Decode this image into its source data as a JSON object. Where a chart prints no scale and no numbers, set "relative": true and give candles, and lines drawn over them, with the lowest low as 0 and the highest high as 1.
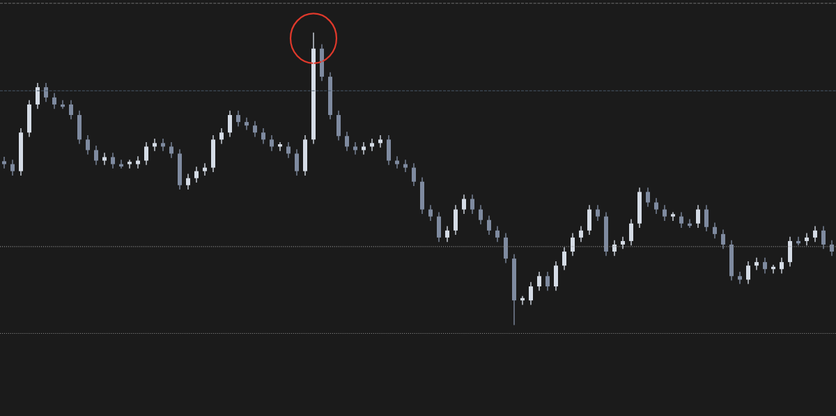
{
  "chart_data": {
    "type": "candlestick",
    "relative": true,
    "grid": false,
    "colors": [
      "#7f8ba0",
      "#7f8ba0",
      "#d5dce6",
      "#d5dce6",
      "#d5dce6",
      "#7f8ba0",
      "#7f8ba0",
      "#7f8ba0",
      "#7f8ba0",
      "#7f8ba0",
      "#7f8ba0",
      "#7f8ba0",
      "#d5dce6",
      "#7f8ba0",
      "#7f8ba0",
      "#d5dce6",
      "#d5dce6",
      "#d5dce6",
      "#d5dce6",
      "#7f8ba0",
      "#7f8ba0",
      "#7f8ba0",
      "#d5dce6",
      "#d5dce6",
      "#d5dce6",
      "#d5dce6",
      "#d5dce6",
      "#d5dce6",
      "#7f8ba0",
      "#7f8ba0",
      "#7f8ba0",
      "#7f8ba0",
      "#7f8ba0",
      "#d5dce6",
      "#7f8ba0",
      "#7f8ba0",
      "#d5dce6",
      "#d5dce6",
      "#7f8ba0",
      "#7f8ba0",
      "#7f8ba0",
      "#7f8ba0",
      "#7f8ba0",
      "#d5dce6",
      "#d5dce6",
      "#d5dce6",
      "#7f8ba0",
      "#7f8ba0",
      "#7f8ba0",
      "#7f8ba0",
      "#7f8ba0",
      "#7f8ba0",
      "#7f8ba0",
      "#d5dce6",
      "#d5dce6",
      "#d5dce6",
      "#7f8ba0",
      "#7f8ba0",
      "#7f8ba0",
      "#7f8ba0",
      "#7f8ba0",
      "#7f8ba0",
      "#d5dce6",
      "#d5dce6",
      "#d5dce6",
      "#7f8ba0",
      "#d5dce6",
      "#d5dce6",
      "#d5dce6",
      "#d5dce6",
      "#d5dce6",
      "#7f8ba0",
      "#7f8ba0",
      "#d5dce6",
      "#d5dce6",
      "#d5dce6",
      "#d5dce6",
      "#7f8ba0",
      "#7f8ba0",
      "#7f8ba0",
      "#d5dce6",
      "#7f8ba0",
      "#7f8ba0",
      "#d5dce6",
      "#7f8ba0",
      "#7f8ba0",
      "#7f8ba0",
      "#7f8ba0",
      "#7f8ba0",
      "#d5dce6",
      "#d5dce6",
      "#7f8ba0",
      "#d5dce6",
      "#d5dce6",
      "#d5dce6",
      "#7f8ba0",
      "#d5dce6",
      "#d5dce6",
      "#7f8ba0",
      "#7f8ba0"
    ],
    "categories": [
      null,
      null,
      null,
      null,
      null,
      null,
      null,
      null,
      null,
      null,
      null,
      null,
      null,
      null,
      null,
      null,
      null,
      null,
      null,
      null,
      null,
      null,
      null,
      null,
      null,
      null,
      null,
      null,
      null,
      null,
      null,
      null,
      null,
      null,
      null,
      null,
      null,
      null,
      null,
      null,
      null,
      null,
      null,
      null,
      null,
      null,
      null,
      null,
      null,
      null,
      null,
      null,
      null,
      null,
      null,
      null,
      null,
      null,
      null,
      null,
      null,
      null,
      null,
      null,
      null,
      null,
      null,
      null,
      null,
      null,
      null,
      null,
      null,
      null,
      null,
      null,
      null,
      null,
      null,
      null,
      null,
      null,
      null,
      null,
      null,
      null,
      null,
      null,
      null,
      null,
      null,
      null,
      null,
      null,
      null,
      null,
      null,
      null,
      null,
      null
    ],
    "ohlc": [
      [
        0.56,
        0.575,
        0.535,
        0.55
      ],
      [
        0.55,
        0.565,
        0.511,
        0.526
      ],
      [
        0.526,
        0.673,
        0.511,
        0.658
      ],
      [
        0.658,
        0.769,
        0.643,
        0.754
      ],
      [
        0.754,
        0.828,
        0.739,
        0.813
      ],
      [
        0.813,
        0.828,
        0.763,
        0.778
      ],
      [
        0.778,
        0.793,
        0.739,
        0.754
      ],
      [
        0.754,
        0.769,
        0.739,
        0.746
      ],
      [
        0.754,
        0.769,
        0.703,
        0.718
      ],
      [
        0.718,
        0.733,
        0.619,
        0.634
      ],
      [
        0.634,
        0.649,
        0.583,
        0.598
      ],
      [
        0.598,
        0.613,
        0.547,
        0.562
      ],
      [
        0.562,
        0.589,
        0.547,
        0.574
      ],
      [
        0.574,
        0.589,
        0.535,
        0.55
      ],
      [
        0.55,
        0.565,
        0.535,
        0.542
      ],
      [
        0.55,
        0.565,
        0.535,
        0.558
      ],
      [
        0.55,
        0.577,
        0.535,
        0.562
      ],
      [
        0.562,
        0.625,
        0.547,
        0.61
      ],
      [
        0.61,
        0.637,
        0.595,
        0.622
      ],
      [
        0.622,
        0.637,
        0.595,
        0.61
      ],
      [
        0.61,
        0.625,
        0.571,
        0.586
      ],
      [
        0.586,
        0.601,
        0.463,
        0.478
      ],
      [
        0.478,
        0.517,
        0.463,
        0.502
      ],
      [
        0.502,
        0.541,
        0.487,
        0.526
      ],
      [
        0.526,
        0.553,
        0.511,
        0.538
      ],
      [
        0.538,
        0.649,
        0.523,
        0.634
      ],
      [
        0.634,
        0.673,
        0.619,
        0.658
      ],
      [
        0.658,
        0.733,
        0.643,
        0.718
      ],
      [
        0.718,
        0.733,
        0.679,
        0.694
      ],
      [
        0.694,
        0.709,
        0.667,
        0.682
      ],
      [
        0.682,
        0.697,
        0.643,
        0.658
      ],
      [
        0.658,
        0.673,
        0.619,
        0.634
      ],
      [
        0.634,
        0.649,
        0.595,
        0.61
      ],
      [
        0.61,
        0.625,
        0.595,
        0.618
      ],
      [
        0.61,
        0.625,
        0.571,
        0.586
      ],
      [
        0.586,
        0.601,
        0.511,
        0.526
      ],
      [
        0.526,
        0.649,
        0.511,
        0.634
      ],
      [
        0.634,
        1.0,
        0.619,
        0.945
      ],
      [
        0.945,
        0.96,
        0.834,
        0.849
      ],
      [
        0.849,
        0.864,
        0.703,
        0.718
      ],
      [
        0.718,
        0.733,
        0.631,
        0.646
      ],
      [
        0.646,
        0.661,
        0.595,
        0.61
      ],
      [
        0.61,
        0.625,
        0.583,
        0.598
      ],
      [
        0.598,
        0.625,
        0.583,
        0.61
      ],
      [
        0.61,
        0.637,
        0.595,
        0.622
      ],
      [
        0.622,
        0.649,
        0.607,
        0.634
      ],
      [
        0.634,
        0.649,
        0.547,
        0.562
      ],
      [
        0.562,
        0.577,
        0.535,
        0.55
      ],
      [
        0.55,
        0.565,
        0.523,
        0.538
      ],
      [
        0.538,
        0.553,
        0.475,
        0.49
      ],
      [
        0.49,
        0.505,
        0.38,
        0.395
      ],
      [
        0.395,
        0.41,
        0.356,
        0.371
      ],
      [
        0.371,
        0.386,
        0.284,
        0.299
      ],
      [
        0.299,
        0.338,
        0.284,
        0.323
      ],
      [
        0.323,
        0.41,
        0.308,
        0.395
      ],
      [
        0.395,
        0.446,
        0.38,
        0.431
      ],
      [
        0.431,
        0.446,
        0.38,
        0.395
      ],
      [
        0.395,
        0.41,
        0.344,
        0.359
      ],
      [
        0.359,
        0.374,
        0.308,
        0.323
      ],
      [
        0.323,
        0.338,
        0.284,
        0.299
      ],
      [
        0.299,
        0.314,
        0.212,
        0.227
      ],
      [
        0.227,
        0.242,
        0.0,
        0.084
      ],
      [
        0.084,
        0.099,
        0.069,
        0.092
      ],
      [
        0.084,
        0.147,
        0.069,
        0.132
      ],
      [
        0.132,
        0.182,
        0.117,
        0.167
      ],
      [
        0.167,
        0.182,
        0.117,
        0.132
      ],
      [
        0.132,
        0.218,
        0.117,
        0.203
      ],
      [
        0.203,
        0.266,
        0.188,
        0.251
      ],
      [
        0.251,
        0.314,
        0.236,
        0.299
      ],
      [
        0.299,
        0.338,
        0.284,
        0.323
      ],
      [
        0.323,
        0.41,
        0.308,
        0.395
      ],
      [
        0.395,
        0.41,
        0.356,
        0.371
      ],
      [
        0.371,
        0.386,
        0.236,
        0.251
      ],
      [
        0.251,
        0.29,
        0.236,
        0.275
      ],
      [
        0.275,
        0.302,
        0.26,
        0.287
      ],
      [
        0.287,
        0.362,
        0.272,
        0.347
      ],
      [
        0.347,
        0.47,
        0.332,
        0.455
      ],
      [
        0.455,
        0.47,
        0.404,
        0.419
      ],
      [
        0.419,
        0.434,
        0.38,
        0.395
      ],
      [
        0.395,
        0.41,
        0.356,
        0.371
      ],
      [
        0.371,
        0.386,
        0.356,
        0.379
      ],
      [
        0.371,
        0.386,
        0.332,
        0.347
      ],
      [
        0.347,
        0.362,
        0.332,
        0.339
      ],
      [
        0.347,
        0.41,
        0.332,
        0.395
      ],
      [
        0.395,
        0.41,
        0.32,
        0.335
      ],
      [
        0.335,
        0.35,
        0.296,
        0.311
      ],
      [
        0.311,
        0.326,
        0.26,
        0.275
      ],
      [
        0.275,
        0.29,
        0.152,
        0.167
      ],
      [
        0.167,
        0.182,
        0.14,
        0.155
      ],
      [
        0.155,
        0.218,
        0.14,
        0.203
      ],
      [
        0.203,
        0.23,
        0.188,
        0.215
      ],
      [
        0.215,
        0.23,
        0.176,
        0.191
      ],
      [
        0.191,
        0.206,
        0.176,
        0.199
      ],
      [
        0.191,
        0.23,
        0.176,
        0.215
      ],
      [
        0.215,
        0.302,
        0.2,
        0.287
      ],
      [
        0.287,
        0.302,
        0.272,
        0.279
      ],
      [
        0.287,
        0.314,
        0.272,
        0.299
      ],
      [
        0.299,
        0.338,
        0.284,
        0.323
      ],
      [
        0.323,
        0.338,
        0.26,
        0.275
      ],
      [
        0.275,
        0.29,
        0.236,
        0.251
      ]
    ],
    "ref_lines": [
      {
        "axis": "y",
        "value": 1.1,
        "color": "#6f6f6f",
        "line_style": "dashed"
      },
      {
        "axis": "y",
        "value": 0.801,
        "color": "#4a5a6a",
        "line_style": "dashed"
      },
      {
        "axis": "y",
        "value": 0.268,
        "color": "#8a8a8a",
        "line_style": "dotted"
      },
      {
        "axis": "y",
        "value": -0.029,
        "color": "#8a8a8a",
        "line_style": "dotted"
      }
    ]
  }
}
